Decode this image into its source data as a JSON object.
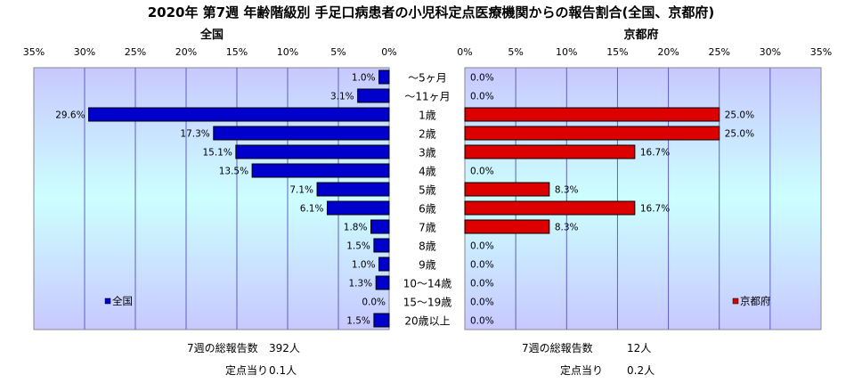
{
  "title": "2020年 第7週 年齢階級別 手足口病患者の小児科定点医療機関からの報告割合(全国、京都府)",
  "chart_data": {
    "type": "bar",
    "categories": [
      "～5ヶ月",
      "～11ヶ月",
      "1歳",
      "2歳",
      "3歳",
      "4歳",
      "5歳",
      "6歳",
      "7歳",
      "8歳",
      "9歳",
      "10～14歳",
      "15～19歳",
      "20歳以上"
    ],
    "xlim": [
      0,
      35
    ],
    "xticks": [
      "0%",
      "5%",
      "10%",
      "15%",
      "20%",
      "25%",
      "30%",
      "35%"
    ],
    "grid": true,
    "series": [
      {
        "name": "全国",
        "panel_title": "全国",
        "color": "#0000cc",
        "direction": "reversed",
        "values": [
          1.0,
          3.1,
          29.6,
          17.3,
          15.1,
          13.5,
          7.1,
          6.1,
          1.8,
          1.5,
          1.0,
          1.3,
          0.0,
          1.5
        ],
        "labels": [
          "1.0%",
          "3.1%",
          "29.6%",
          "17.3%",
          "15.1%",
          "13.5%",
          "7.1%",
          "6.1%",
          "1.8%",
          "1.5%",
          "1.0%",
          "1.3%",
          "0.0%",
          "1.5%"
        ],
        "legend_position": "bottom-left"
      },
      {
        "name": "京都府",
        "panel_title": "京都府",
        "color": "#dd0000",
        "direction": "normal",
        "values": [
          0.0,
          0.0,
          25.0,
          25.0,
          16.7,
          0.0,
          8.3,
          16.7,
          8.3,
          0.0,
          0.0,
          0.0,
          0.0,
          0.0
        ],
        "labels": [
          "0.0%",
          "0.0%",
          "25.0%",
          "25.0%",
          "16.7%",
          "0.0%",
          "8.3%",
          "16.7%",
          "8.3%",
          "0.0%",
          "0.0%",
          "0.0%",
          "0.0%",
          "0.0%"
        ],
        "legend_position": "bottom-right"
      }
    ]
  },
  "footer": {
    "national": {
      "total_label": "7週の総報告数",
      "total_value": "392人",
      "per_label": "定点当り",
      "per_value": "0.1人"
    },
    "kyoto": {
      "total_label": "7週の総報告数",
      "total_value": "12人",
      "per_label": "定点当り",
      "per_value": "0.2人"
    }
  }
}
